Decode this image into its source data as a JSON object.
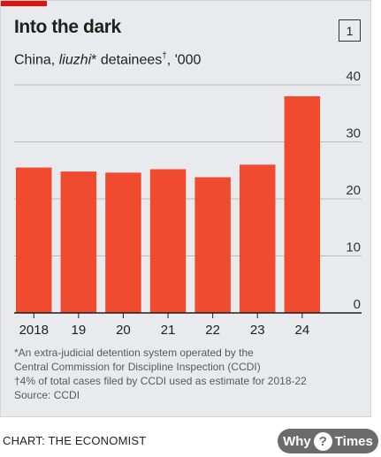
{
  "chart_data": {
    "type": "bar",
    "title": "Into the dark",
    "subtitle": {
      "prefix": "China, ",
      "italic": "liuzhi",
      "middle": "* detainees",
      "dagger": "†",
      "suffix": ", '000"
    },
    "badge": "1",
    "categories": [
      "2018",
      "19",
      "20",
      "21",
      "22",
      "23",
      "24"
    ],
    "values": [
      25.5,
      24.8,
      24.6,
      25.2,
      23.8,
      26.0,
      38.0
    ],
    "ylim": [
      0,
      40
    ],
    "yticks": [
      "0",
      "10",
      "20",
      "30",
      "40"
    ],
    "grid": true,
    "bar_color": "#f04a2f",
    "notes": [
      "*An extra-judicial detention system operated by the",
      "Central Commission for Discipline Inspection (CCDI)",
      "†4% of total cases filed by CCDI used as estimate for 2018-22",
      "Source: CCDI"
    ]
  },
  "footer": {
    "credit": "CHART: THE ECONOMIST",
    "logo_left": "Why",
    "logo_mark": "?",
    "logo_right": "Times"
  }
}
